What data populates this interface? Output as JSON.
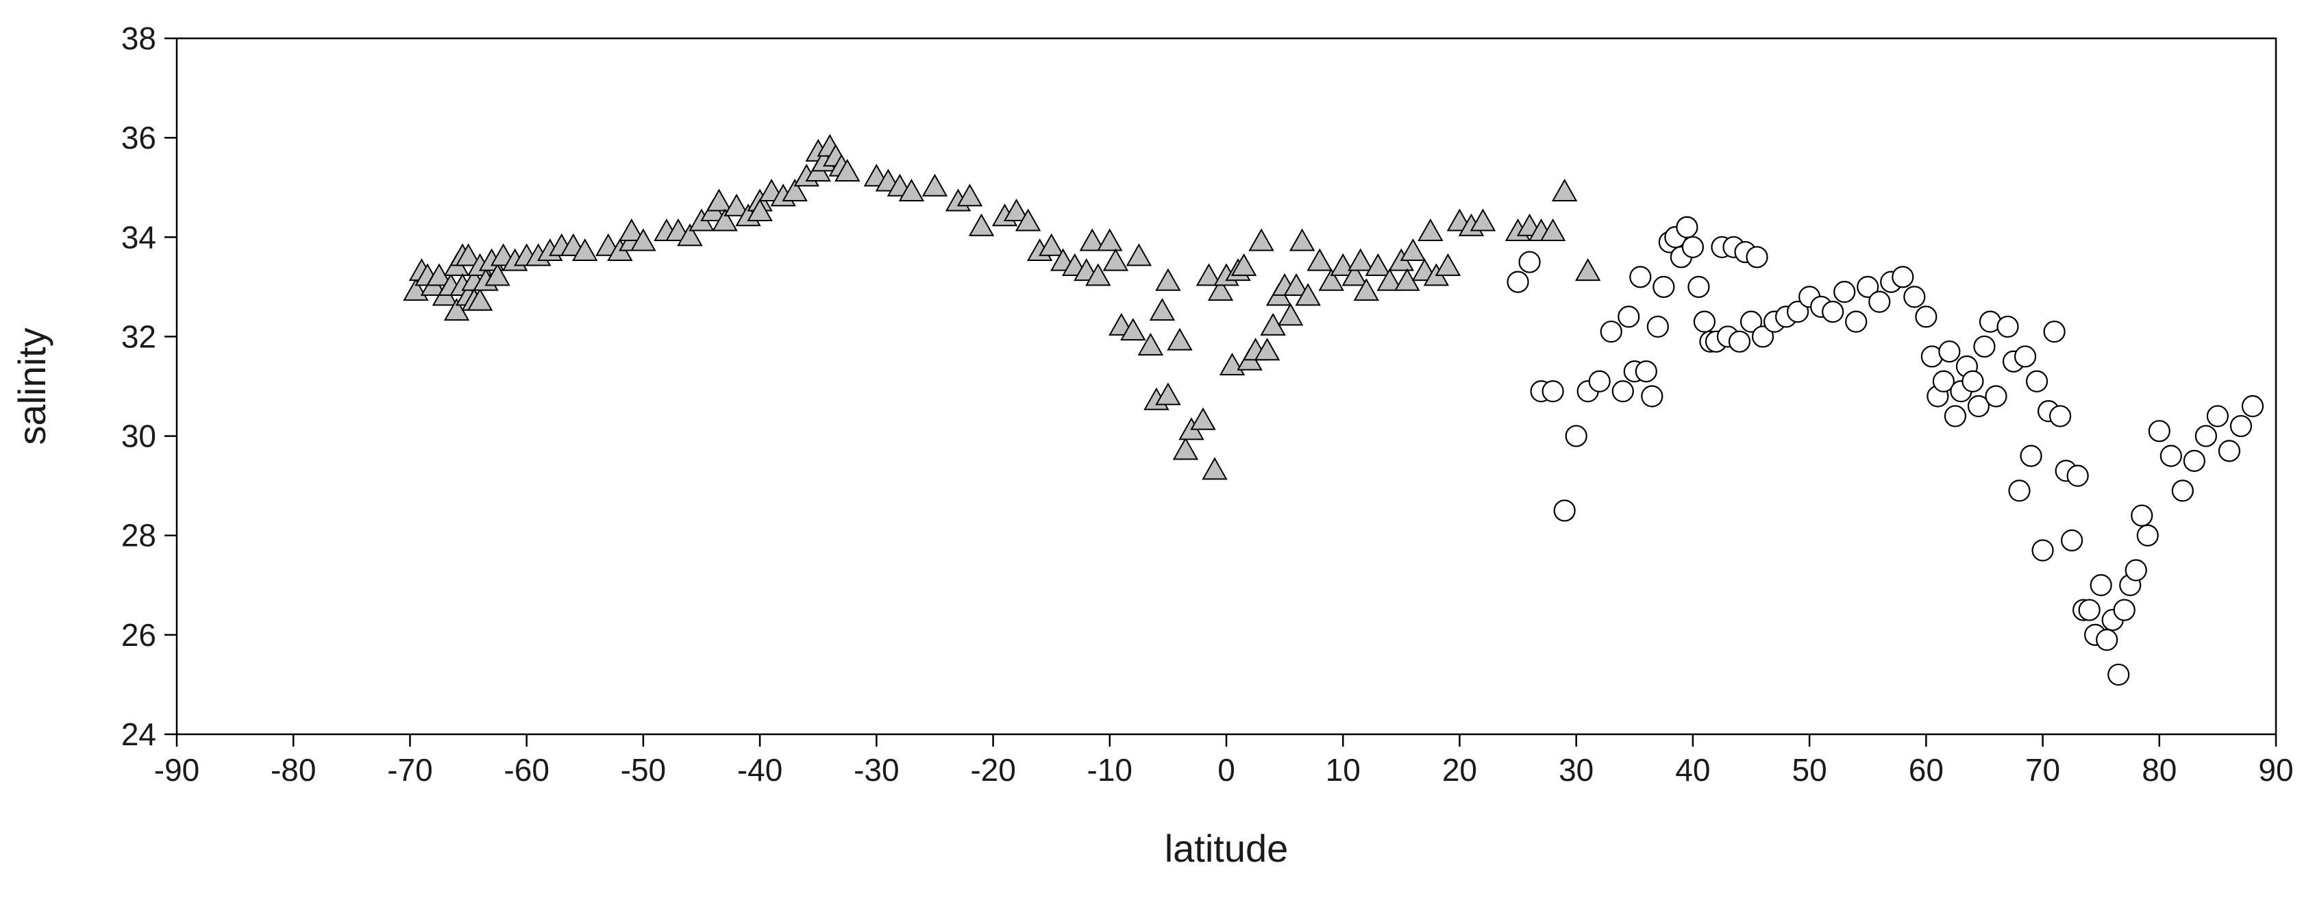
{
  "chart_data": {
    "type": "scatter",
    "xlabel": "latitude",
    "ylabel": "salinity",
    "xlim": [
      -90,
      90
    ],
    "ylim": [
      24,
      38
    ],
    "xticks": [
      -90,
      -80,
      -70,
      -60,
      -50,
      -40,
      -30,
      -20,
      -10,
      0,
      10,
      20,
      30,
      40,
      50,
      60,
      70,
      80,
      90
    ],
    "yticks": [
      24,
      26,
      28,
      30,
      32,
      34,
      36,
      38
    ],
    "grid": false,
    "legend": "none",
    "series": [
      {
        "marker": "triangle",
        "color": "#c0c0c0",
        "x": [
          -69.5,
          -69,
          -68.5,
          -68,
          -67.5,
          -67,
          -66.5,
          -66,
          -66,
          -65.5,
          -65.5,
          -65,
          -65,
          -64.5,
          -64.5,
          -64,
          -64,
          -63.5,
          -63,
          -62.5,
          -62,
          -61,
          -60,
          -59,
          -58,
          -57,
          -56,
          -55,
          -53,
          -52,
          -51,
          -51,
          -50,
          -48,
          -47,
          -46,
          -45,
          -44,
          -43.5,
          -43,
          -42,
          -41,
          -40,
          -40,
          -39,
          -38,
          -37,
          -36,
          -35,
          -35,
          -34.5,
          -34,
          -33.5,
          -33,
          -32.5,
          -30,
          -29,
          -28,
          -27,
          -25,
          -23,
          -22,
          -21,
          -19,
          -18,
          -17,
          -16,
          -15,
          -14,
          -13,
          -12,
          -11.5,
          -11,
          -10,
          -9.5,
          -9,
          -8,
          -7.5,
          -6.5,
          -6,
          -5.5,
          -5,
          -5,
          -4,
          -3.5,
          -3,
          -2,
          -1.5,
          -1,
          -0.5,
          0,
          0.5,
          1,
          1.5,
          2,
          2.5,
          3,
          3.5,
          4,
          4.5,
          5,
          5.5,
          6,
          6.5,
          7,
          8,
          9,
          10,
          11,
          11.5,
          12,
          13,
          14,
          15,
          15.5,
          16,
          17,
          17.5,
          18,
          19,
          20,
          21,
          22,
          25,
          26,
          27,
          28,
          29,
          31
        ],
        "y": [
          32.9,
          33.3,
          33.2,
          33,
          33.2,
          32.8,
          33,
          32.5,
          33.4,
          33.6,
          33,
          33.6,
          32.8,
          33.1,
          32.7,
          33.4,
          32.7,
          33.1,
          33.5,
          33.2,
          33.6,
          33.5,
          33.6,
          33.6,
          33.7,
          33.8,
          33.8,
          33.7,
          33.8,
          33.7,
          33.9,
          34.1,
          33.9,
          34.1,
          34.1,
          34,
          34.3,
          34.5,
          34.7,
          34.3,
          34.6,
          34.4,
          34.7,
          34.5,
          34.9,
          34.8,
          34.9,
          35.2,
          35.3,
          35.7,
          35.5,
          35.8,
          35.6,
          35.4,
          35.3,
          35.2,
          35.1,
          35,
          34.9,
          35,
          34.7,
          34.8,
          34.2,
          34.4,
          34.5,
          34.3,
          33.7,
          33.8,
          33.5,
          33.4,
          33.3,
          33.9,
          33.2,
          33.9,
          33.5,
          32.2,
          32.1,
          33.6,
          31.8,
          30.7,
          32.5,
          30.8,
          33.1,
          31.9,
          29.7,
          30.1,
          30.3,
          33.2,
          29.3,
          32.9,
          33.2,
          31.4,
          33.3,
          33.4,
          31.5,
          31.7,
          33.9,
          31.7,
          32.2,
          32.8,
          33,
          32.4,
          33,
          33.9,
          32.8,
          33.5,
          33.1,
          33.4,
          33.2,
          33.5,
          32.9,
          33.4,
          33.1,
          33.5,
          33.1,
          33.7,
          33.3,
          34.1,
          33.2,
          33.4,
          34.3,
          34.2,
          34.3,
          34.1,
          34.2,
          34.1,
          34.1,
          34.9,
          33.3
        ]
      },
      {
        "marker": "circle",
        "color": "#ffffff",
        "x": [
          25,
          26,
          27,
          28,
          29,
          30,
          31,
          32,
          33,
          34,
          34.5,
          35,
          35.5,
          36,
          36.5,
          37,
          37.5,
          38,
          38.5,
          39,
          39.5,
          40,
          40.5,
          41,
          41.5,
          42,
          42.5,
          43,
          43.5,
          44,
          44.5,
          45,
          45.5,
          46,
          47,
          48,
          49,
          50,
          51,
          52,
          53,
          54,
          55,
          56,
          57,
          58,
          59,
          60,
          60.5,
          61,
          61.5,
          62,
          62.5,
          63,
          63.5,
          64,
          64.5,
          65,
          65.5,
          66,
          67,
          67.5,
          68,
          68.5,
          69,
          69.5,
          70,
          70.5,
          71,
          71.5,
          72,
          72.5,
          73,
          73.5,
          74,
          74.5,
          75,
          75.5,
          76,
          76.5,
          77,
          77.5,
          78,
          78.5,
          79,
          80,
          81,
          82,
          83,
          84,
          85,
          86,
          87,
          88
        ],
        "y": [
          33.1,
          33.5,
          30.9,
          30.9,
          28.5,
          30,
          30.9,
          31.1,
          32.1,
          30.9,
          32.4,
          31.3,
          33.2,
          31.3,
          30.8,
          32.2,
          33,
          33.9,
          34,
          33.6,
          34.2,
          33.8,
          33,
          32.3,
          31.9,
          31.9,
          33.8,
          32,
          33.8,
          31.9,
          33.7,
          32.3,
          33.6,
          32,
          32.3,
          32.4,
          32.5,
          32.8,
          32.6,
          32.5,
          32.9,
          32.3,
          33,
          32.7,
          33.1,
          33.2,
          32.8,
          32.4,
          31.6,
          30.8,
          31.1,
          31.7,
          30.4,
          30.9,
          31.4,
          31.1,
          30.6,
          31.8,
          32.3,
          30.8,
          32.2,
          31.5,
          28.9,
          31.6,
          29.6,
          31.1,
          27.7,
          30.5,
          32.1,
          30.4,
          29.3,
          27.9,
          29.2,
          26.5,
          26.5,
          26,
          27,
          25.9,
          26.3,
          25.2,
          26.5,
          27,
          27.3,
          28.4,
          28,
          30.1,
          29.6,
          28.9,
          29.5,
          30,
          30.4,
          29.7,
          30.2,
          30.6
        ]
      }
    ]
  }
}
